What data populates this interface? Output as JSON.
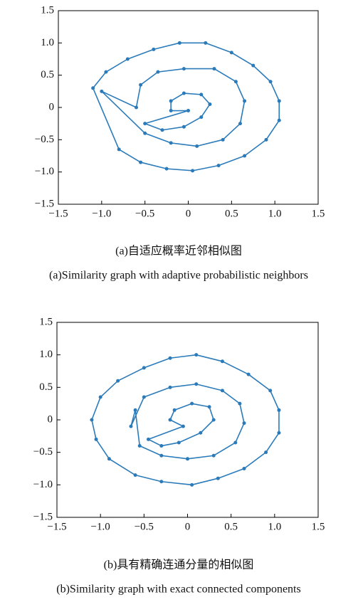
{
  "chart_data": [
    {
      "type": "line",
      "caption_zh": "(a)自适应概率近邻相似图",
      "caption_en": "(a)Similarity graph with adaptive probabilistic neighbors",
      "xlim": [
        -1.5,
        1.5
      ],
      "ylim": [
        -1.5,
        1.5
      ],
      "xticks": [
        {
          "value": -1.5,
          "label": "−1.5"
        },
        {
          "value": -1,
          "label": "−1.0"
        },
        {
          "value": -0.5,
          "label": "−0.5"
        },
        0,
        0.5,
        {
          "value": 1,
          "label": "1.0"
        },
        1.5
      ],
      "yticks": [
        {
          "value": -1.5,
          "label": "−1.5"
        },
        {
          "value": -1,
          "label": "−1.0"
        },
        {
          "value": -0.5,
          "label": "−0.5"
        },
        0,
        0.5,
        {
          "value": 1,
          "label": "1.0"
        },
        1.5
      ],
      "series": [
        {
          "color": "#2b7bba",
          "x": [
            -1.1,
            -0.95,
            -0.7,
            -0.4,
            -0.1,
            0.2,
            0.5,
            0.75,
            0.95,
            1.05,
            1.05,
            0.9,
            0.65,
            0.35,
            0.05,
            -0.25,
            -0.55,
            -0.8
          ],
          "values": [
            0.3,
            0.55,
            0.75,
            0.9,
            1.0,
            1.0,
            0.85,
            0.65,
            0.4,
            0.1,
            -0.2,
            -0.5,
            -0.75,
            -0.9,
            -0.98,
            -0.95,
            -0.85,
            -0.65
          ]
        },
        {
          "color": "#2b7bba",
          "x": [
            -1.0,
            -0.6,
            -0.55,
            -0.35,
            -0.05,
            0.3,
            0.55,
            0.65,
            0.6,
            0.4,
            0.1,
            -0.2,
            -0.5
          ],
          "values": [
            0.25,
            0.0,
            0.35,
            0.55,
            0.6,
            0.6,
            0.4,
            0.1,
            -0.25,
            -0.5,
            -0.6,
            -0.55,
            -0.4
          ]
        },
        {
          "color": "#2b7bba",
          "x": [
            -0.5,
            -0.3,
            -0.05,
            0.15,
            0.25,
            0.15,
            -0.05,
            -0.2,
            -0.2,
            0.0
          ],
          "values": [
            -0.25,
            -0.35,
            -0.3,
            -0.15,
            0.05,
            0.2,
            0.22,
            0.1,
            -0.05,
            -0.05
          ]
        }
      ]
    },
    {
      "type": "line",
      "caption_zh": "(b)具有精确连通分量的相似图",
      "caption_en": "(b)Similarity graph with exact connected components",
      "xlim": [
        -1.5,
        1.5
      ],
      "ylim": [
        -1.5,
        1.5
      ],
      "xticks": [
        {
          "value": -1.5,
          "label": "−1.5"
        },
        {
          "value": -1,
          "label": "−1.0"
        },
        {
          "value": -0.5,
          "label": "−0.5"
        },
        0,
        0.5,
        {
          "value": 1,
          "label": "1.0"
        },
        1.5
      ],
      "yticks": [
        {
          "value": -1.5,
          "label": "−1.5"
        },
        {
          "value": -1,
          "label": "−1.0"
        },
        {
          "value": -0.5,
          "label": "−0.5"
        },
        0,
        0.5,
        {
          "value": 1,
          "label": "1.0"
        },
        1.5
      ],
      "series": [
        {
          "color": "#2b7bba",
          "x": [
            -1.1,
            -1.0,
            -0.8,
            -0.5,
            -0.2,
            0.1,
            0.4,
            0.7,
            0.95,
            1.05,
            1.05,
            0.9,
            0.65,
            0.35,
            0.05,
            -0.3,
            -0.6,
            -0.9,
            -1.05
          ],
          "values": [
            0.0,
            0.35,
            0.6,
            0.8,
            0.95,
            1.0,
            0.9,
            0.7,
            0.45,
            0.15,
            -0.2,
            -0.5,
            -0.75,
            -0.9,
            -1.0,
            -0.95,
            -0.85,
            -0.6,
            -0.3
          ]
        },
        {
          "color": "#2b7bba",
          "x": [
            -0.6,
            -0.65,
            -0.5,
            -0.2,
            0.1,
            0.4,
            0.6,
            0.65,
            0.55,
            0.3,
            0.0,
            -0.3,
            -0.55
          ],
          "values": [
            0.15,
            -0.1,
            0.35,
            0.5,
            0.55,
            0.45,
            0.25,
            -0.05,
            -0.35,
            -0.55,
            -0.6,
            -0.55,
            -0.4
          ]
        },
        {
          "color": "#2b7bba",
          "x": [
            -0.45,
            -0.3,
            -0.1,
            0.15,
            0.3,
            0.25,
            0.05,
            -0.15,
            -0.2,
            -0.05
          ],
          "values": [
            -0.3,
            -0.4,
            -0.35,
            -0.2,
            0.0,
            0.2,
            0.25,
            0.15,
            0.0,
            -0.1
          ]
        }
      ]
    }
  ]
}
